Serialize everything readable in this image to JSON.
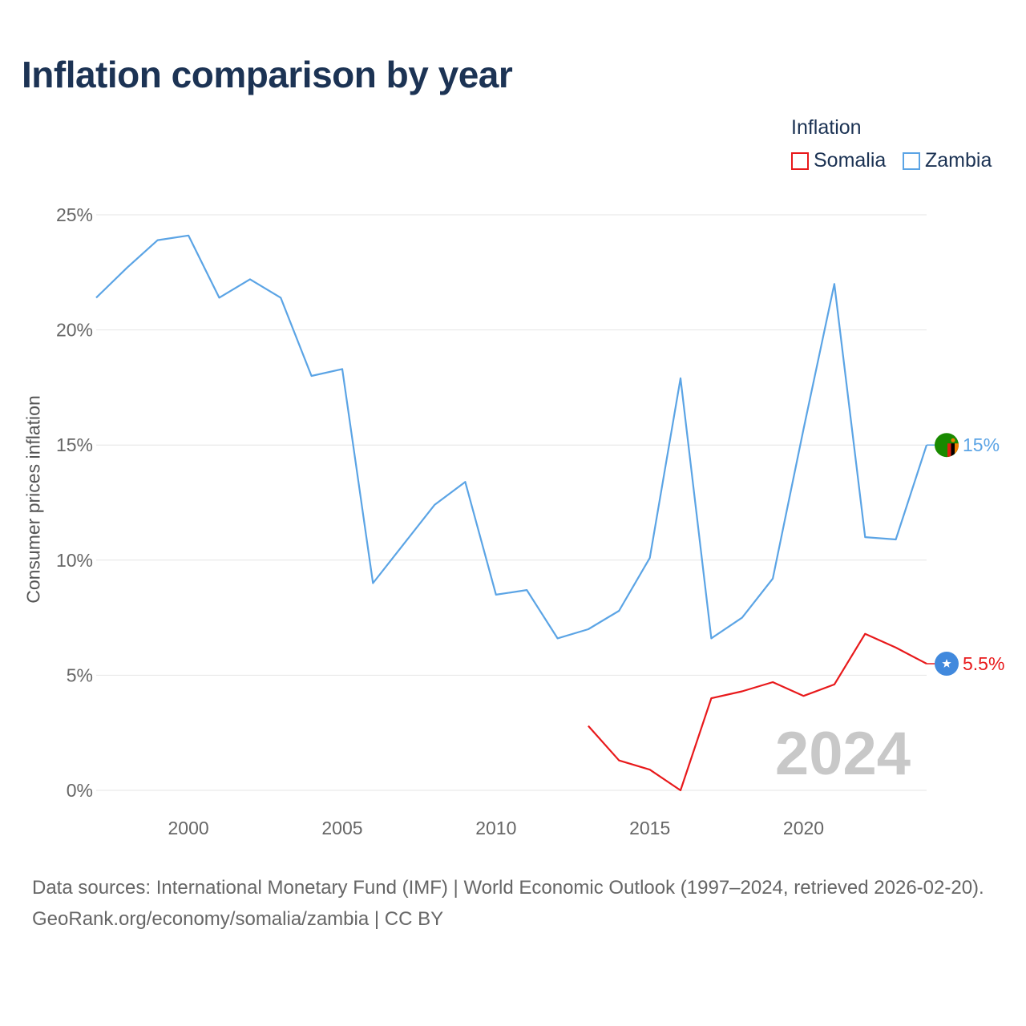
{
  "title": "Inflation comparison by year",
  "legend": {
    "title": "Inflation",
    "items": [
      {
        "label": "Somalia",
        "color": "#e8191b"
      },
      {
        "label": "Zambia",
        "color": "#5ba4e5"
      }
    ]
  },
  "footer": {
    "sources": "Data sources: International Monetary Fund (IMF) | World Economic Outlook (1997–2024, retrieved 2026-02-20).",
    "credit": "GeoRank.org/economy/somalia/zambia | CC BY"
  },
  "chart_data": {
    "type": "line",
    "title": "Inflation comparison by year",
    "xlabel": "",
    "ylabel": "Consumer prices inflation",
    "xlim": [
      1997,
      2024
    ],
    "ylim": [
      0,
      25
    ],
    "x_ticks": [
      2000,
      2005,
      2010,
      2015,
      2020
    ],
    "y_ticks": [
      0,
      5,
      10,
      15,
      20,
      25
    ],
    "y_tick_labels": [
      "0%",
      "5%",
      "10%",
      "15%",
      "20%",
      "25%"
    ],
    "grid": true,
    "legend_position": "top-right",
    "year_watermark": "2024",
    "series": [
      {
        "name": "Zambia",
        "color": "#5ba4e5",
        "end_label": "15%",
        "flag_icon": "zambia-flag-icon",
        "x": [
          1997,
          1998,
          1999,
          2000,
          2001,
          2002,
          2003,
          2004,
          2005,
          2006,
          2007,
          2008,
          2009,
          2010,
          2011,
          2012,
          2013,
          2014,
          2015,
          2016,
          2017,
          2018,
          2019,
          2020,
          2021,
          2022,
          2023,
          2024
        ],
        "y": [
          21.4,
          22.7,
          23.9,
          24.1,
          21.4,
          22.2,
          21.4,
          18.0,
          18.3,
          9.0,
          10.7,
          12.4,
          13.4,
          8.5,
          8.7,
          6.6,
          7.0,
          7.8,
          10.1,
          17.9,
          6.6,
          7.5,
          9.2,
          15.7,
          22.0,
          11.0,
          10.9,
          15.0
        ]
      },
      {
        "name": "Somalia",
        "color": "#e8191b",
        "end_label": "5.5%",
        "flag_icon": "somalia-flag-icon",
        "x": [
          2013,
          2014,
          2015,
          2016,
          2017,
          2018,
          2019,
          2020,
          2021,
          2022,
          2023,
          2024
        ],
        "y": [
          2.8,
          1.3,
          0.9,
          0.0,
          4.0,
          4.3,
          4.7,
          4.1,
          4.6,
          6.8,
          6.2,
          5.5
        ]
      }
    ]
  }
}
